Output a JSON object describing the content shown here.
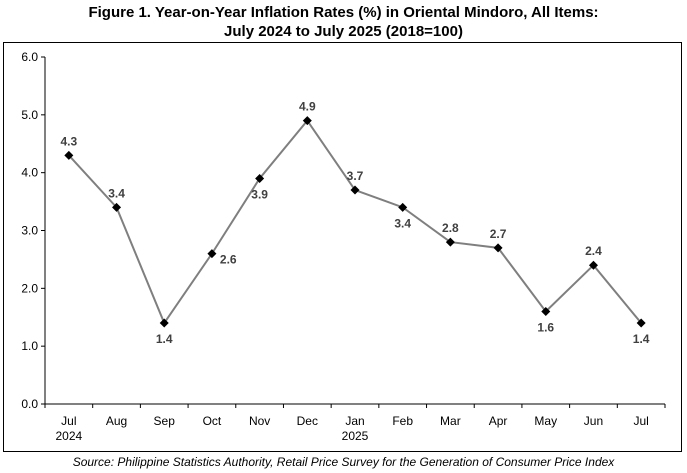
{
  "title_line1": "Figure 1. Year-on-Year Inflation Rates (%) in Oriental Mindoro, All Items:",
  "title_line2": "July 2024 to July 2025 (2018=100)",
  "source": "Source: Philippine Statistics Authority, Retail Price Survey for the Generation of Consumer Price Index",
  "chart_data": {
    "type": "line",
    "title": "Figure 1. Year-on-Year Inflation Rates (%) in Oriental Mindoro, All Items: July 2024 to July 2025 (2018=100)",
    "categories": [
      "Jul",
      "Aug",
      "Sep",
      "Oct",
      "Nov",
      "Dec",
      "Jan",
      "Feb",
      "Mar",
      "Apr",
      "May",
      "Jun",
      "Jul"
    ],
    "category_sublabels": [
      "2024",
      "",
      "",
      "",
      "",
      "",
      "2025",
      "",
      "",
      "",
      "",
      "",
      ""
    ],
    "values": [
      4.3,
      3.4,
      1.4,
      2.6,
      3.9,
      4.9,
      3.7,
      3.4,
      2.8,
      2.7,
      1.6,
      2.4,
      1.4
    ],
    "data_labels": [
      "4.3",
      "3.4",
      "1.4",
      "2.6",
      "3.9",
      "4.9",
      "3.7",
      "3.4",
      "2.8",
      "2.7",
      "1.6",
      "2.4",
      "1.4"
    ],
    "label_positions": [
      "above",
      "above",
      "below",
      "right",
      "below",
      "above",
      "above",
      "below",
      "above",
      "above",
      "below",
      "above",
      "below"
    ],
    "yticks": [
      "0.0",
      "1.0",
      "2.0",
      "3.0",
      "4.0",
      "5.0",
      "6.0"
    ],
    "ylim": [
      0,
      6
    ],
    "xlabel": "",
    "ylabel": "",
    "grid": false,
    "legend": "none",
    "line_color": "#7f7f7f",
    "marker_color": "#000000",
    "marker": "diamond"
  }
}
